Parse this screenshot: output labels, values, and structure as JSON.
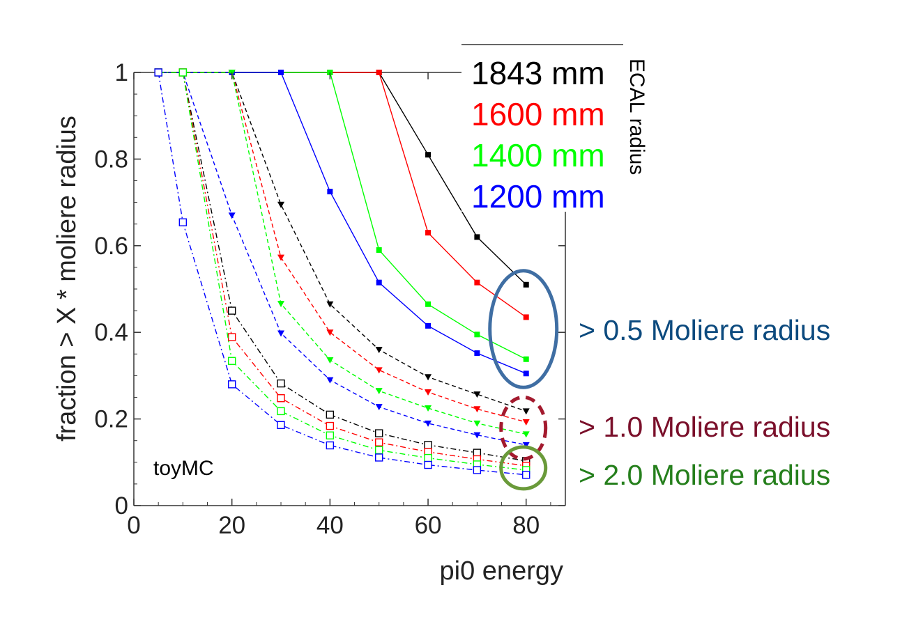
{
  "chart_data": {
    "type": "line",
    "xlabel": "pi0 energy",
    "ylabel": "fraction > X * moliere radius",
    "xlim": [
      0,
      88
    ],
    "ylim": [
      0,
      1
    ],
    "x_ticks": [
      "0",
      "20",
      "40",
      "60",
      "80"
    ],
    "y_ticks": [
      "0",
      "0.2",
      "0.4",
      "0.6",
      "0.8",
      "1"
    ],
    "x": [
      5,
      10,
      20,
      30,
      40,
      50,
      60,
      70,
      80
    ],
    "annotation": "toyMC",
    "legend": {
      "title": "ECAL radius",
      "placement": "top-right",
      "entries": [
        {
          "label": "1843 mm",
          "color": "#000000"
        },
        {
          "label": "1600 mm",
          "color": "#ff0000"
        },
        {
          "label": "1400 mm",
          "color": "#00ff00"
        },
        {
          "label": "1200 mm",
          "color": "#0000ff"
        }
      ]
    },
    "groups": [
      {
        "label": "> 0.5 Moliere radius",
        "label_color": "#0c4a7e",
        "marker": "filled-square",
        "line": "solid",
        "circle_color": "#3f6ea3",
        "circle_style": "solid"
      },
      {
        "label": "> 1.0 Moliere radius",
        "label_color": "#7a0f2a",
        "marker": "filled-triangle-down",
        "line": "dashed",
        "circle_color": "#a31a2e",
        "circle_style": "dashed"
      },
      {
        "label": "> 2.0 Moliere radius",
        "label_color": "#257f1c",
        "marker": "open-square",
        "line": "dash-dot",
        "circle_color": "#6a9a3a",
        "circle_style": "solid"
      }
    ],
    "series": [
      {
        "radius": "1843 mm",
        "group": 0,
        "color": "#000000",
        "values": [
          1,
          1,
          1,
          1,
          1,
          1,
          0.81,
          0.62,
          0.51
        ]
      },
      {
        "radius": "1600 mm",
        "group": 0,
        "color": "#ff0000",
        "values": [
          1,
          1,
          1,
          1,
          1,
          1,
          0.63,
          0.515,
          0.435
        ]
      },
      {
        "radius": "1400 mm",
        "group": 0,
        "color": "#00ff00",
        "values": [
          1,
          1,
          1,
          1,
          1,
          0.59,
          0.465,
          0.395,
          0.338
        ]
      },
      {
        "radius": "1200 mm",
        "group": 0,
        "color": "#0000ff",
        "values": [
          1,
          1,
          1,
          1,
          0.725,
          0.515,
          0.415,
          0.352,
          0.305
        ]
      },
      {
        "radius": "1843 mm",
        "group": 1,
        "color": "#000000",
        "values": [
          1,
          1,
          1,
          0.695,
          0.465,
          0.36,
          0.297,
          0.257,
          0.218
        ]
      },
      {
        "radius": "1600 mm",
        "group": 1,
        "color": "#ff0000",
        "values": [
          1,
          1,
          1,
          0.573,
          0.4,
          0.313,
          0.262,
          0.223,
          0.193
        ]
      },
      {
        "radius": "1400 mm",
        "group": 1,
        "color": "#00ff00",
        "values": [
          1,
          1,
          1,
          0.466,
          0.336,
          0.265,
          0.225,
          0.19,
          0.165
        ]
      },
      {
        "radius": "1200 mm",
        "group": 1,
        "color": "#0000ff",
        "values": [
          1,
          1,
          0.67,
          0.398,
          0.29,
          0.228,
          0.19,
          0.163,
          0.14
        ]
      },
      {
        "radius": "1843 mm",
        "group": 2,
        "color": "#000000",
        "values": [
          1,
          1,
          0.45,
          0.282,
          0.21,
          0.167,
          0.14,
          0.122,
          0.103
        ]
      },
      {
        "radius": "1600 mm",
        "group": 2,
        "color": "#ff0000",
        "values": [
          1,
          1,
          0.389,
          0.248,
          0.184,
          0.146,
          0.124,
          0.107,
          0.092
        ]
      },
      {
        "radius": "1400 mm",
        "group": 2,
        "color": "#00ff00",
        "values": [
          1,
          1,
          0.334,
          0.218,
          0.162,
          0.128,
          0.11,
          0.095,
          0.082
        ]
      },
      {
        "radius": "1200 mm",
        "group": 2,
        "color": "#0000ff",
        "values": [
          1,
          0.654,
          0.28,
          0.186,
          0.139,
          0.111,
          0.094,
          0.082,
          0.071
        ]
      }
    ]
  }
}
